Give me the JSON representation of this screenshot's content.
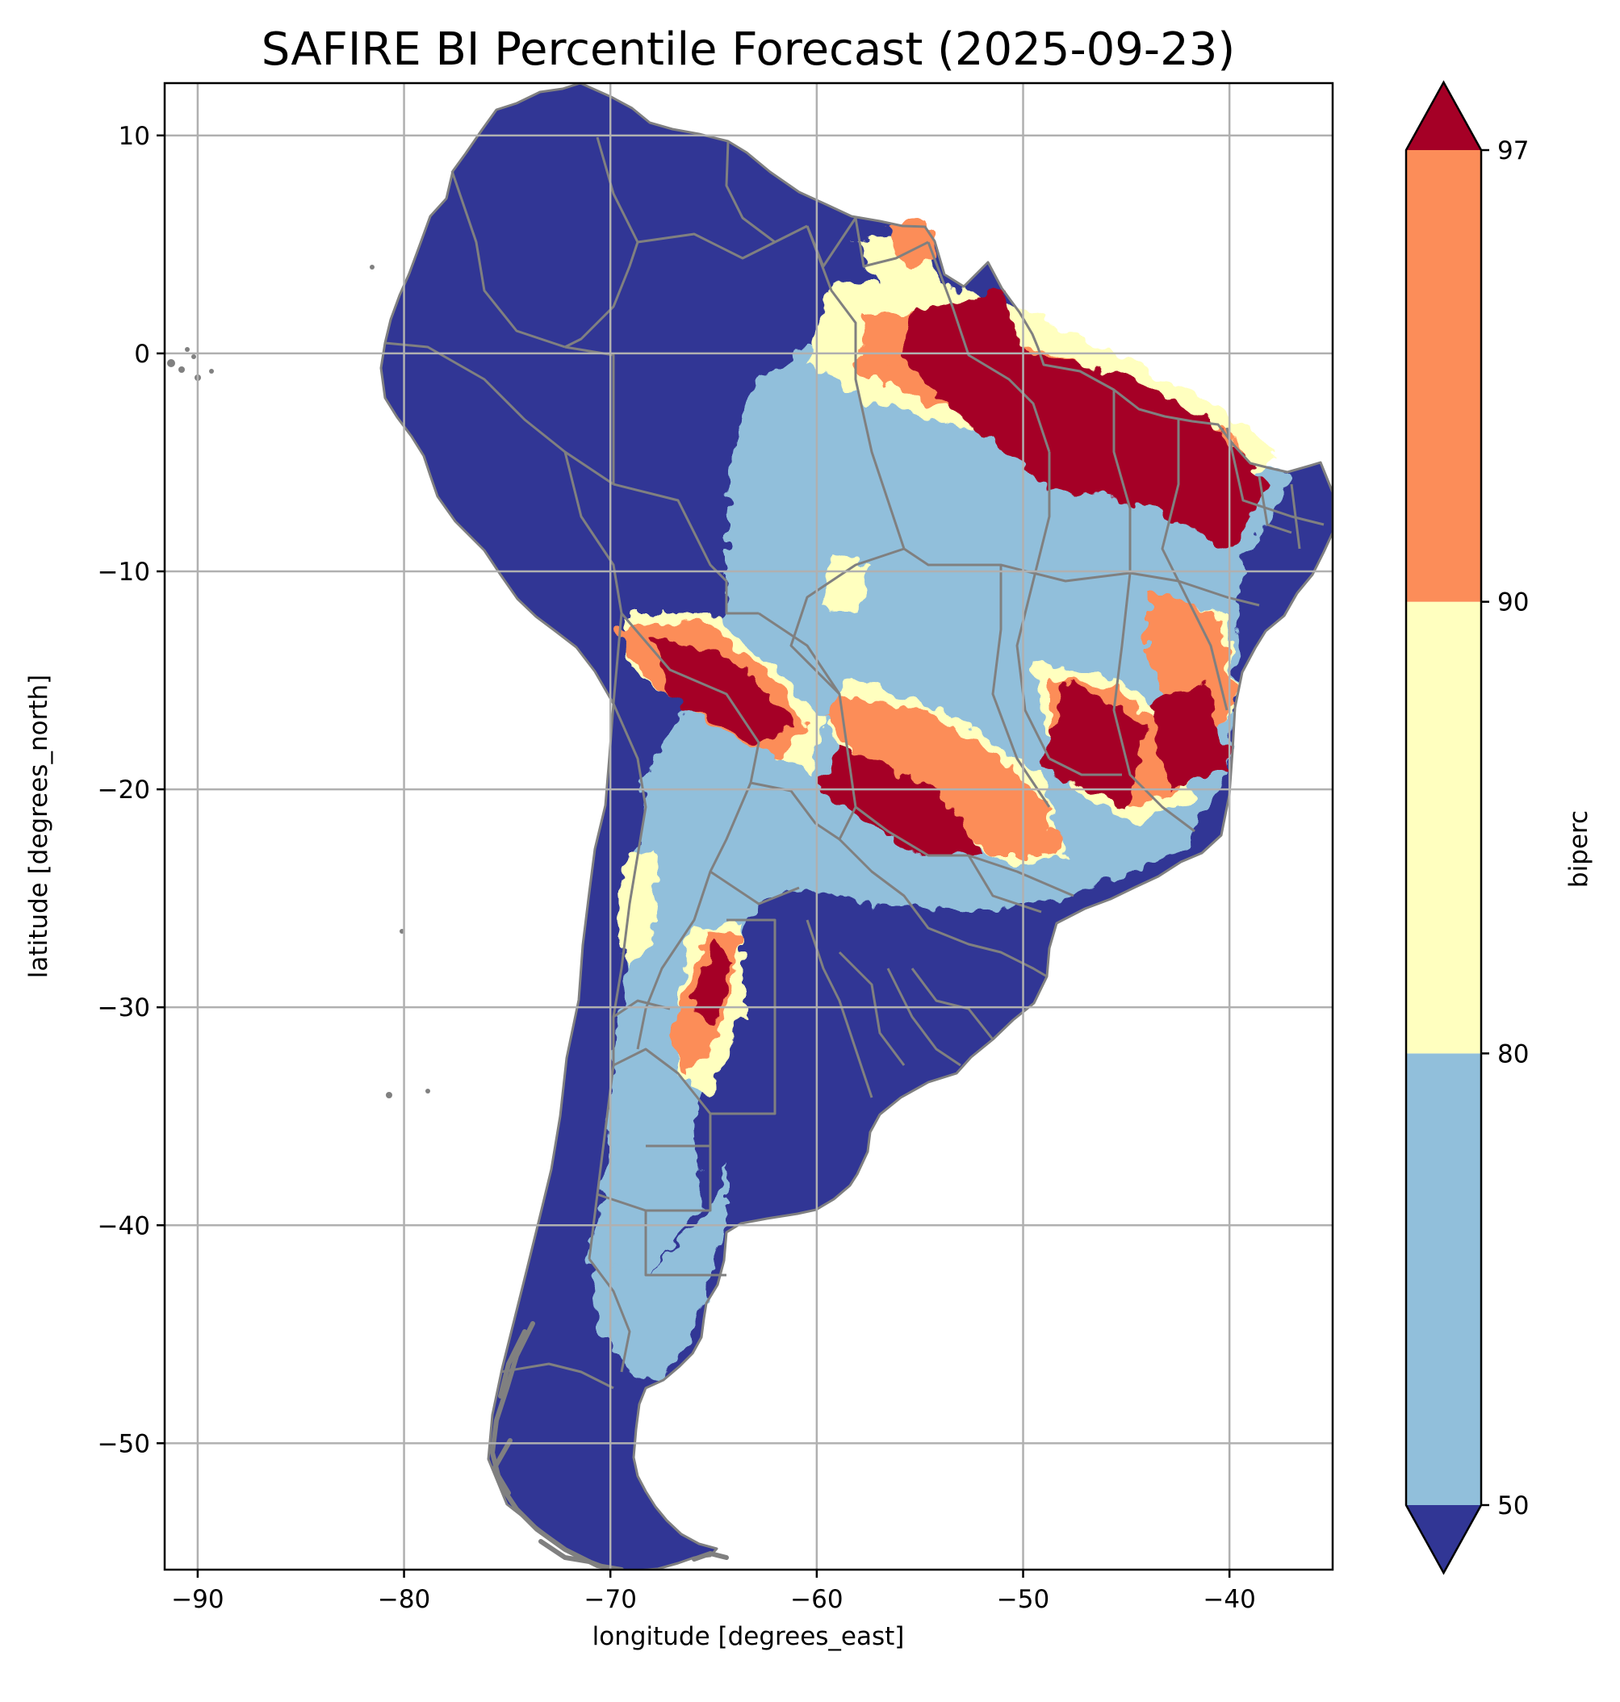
{
  "title": "SAFIRE BI Percentile Forecast (2025-09-23)",
  "map": {
    "type": "raster-map",
    "region": "South America",
    "xlabel": "longitude [degrees_east]",
    "ylabel": "latitude [degrees_north]",
    "xlim": [
      -91.6,
      -35.0
    ],
    "ylim": [
      -55.8,
      12.4
    ],
    "xticks": [
      -90,
      -80,
      -70,
      -60,
      -50,
      -40
    ],
    "yticks": [
      10,
      0,
      -10,
      -20,
      -30,
      -40,
      -50
    ],
    "xtick_labels": [
      "−90",
      "−80",
      "−70",
      "−60",
      "−50",
      "−40"
    ],
    "ytick_labels": [
      "10",
      "0",
      "−10",
      "−20",
      "−30",
      "−40",
      "−50"
    ],
    "grid": true,
    "border_color": "#808080",
    "regions": [
      {
        "class": "above-97",
        "lonlat": [
          [
            -55,
            2
          ],
          [
            -51,
            3
          ],
          [
            -50,
            0
          ],
          [
            -45,
            -1
          ],
          [
            -41,
            -3
          ],
          [
            -38,
            -6
          ],
          [
            -40,
            -9
          ],
          [
            -44,
            -7
          ],
          [
            -49,
            -6
          ],
          [
            -53,
            -3
          ],
          [
            -56,
            0
          ]
        ]
      },
      {
        "class": "above-97",
        "lonlat": [
          [
            -68,
            -13
          ],
          [
            -64,
            -14
          ],
          [
            -61,
            -17
          ],
          [
            -63,
            -18
          ],
          [
            -67,
            -16
          ]
        ]
      },
      {
        "class": "above-97",
        "lonlat": [
          [
            -59,
            -18
          ],
          [
            -54,
            -20
          ],
          [
            -52,
            -23
          ],
          [
            -55,
            -23
          ],
          [
            -60,
            -20
          ]
        ]
      },
      {
        "class": "above-97",
        "lonlat": [
          [
            -48,
            -15
          ],
          [
            -44,
            -17
          ],
          [
            -45,
            -21
          ],
          [
            -49,
            -19
          ]
        ]
      },
      {
        "class": "above-97",
        "lonlat": [
          [
            -44,
            -16
          ],
          [
            -41,
            -15
          ],
          [
            -40,
            -19
          ],
          [
            -43,
            -20
          ]
        ]
      },
      {
        "class": "above-97",
        "lonlat": [
          [
            -65,
            -27
          ],
          [
            -64,
            -28
          ],
          [
            -65,
            -31
          ],
          [
            -66,
            -30
          ]
        ]
      }
    ]
  },
  "colorbar": {
    "label": "biperc",
    "ticks": [
      50,
      80,
      90,
      97
    ],
    "tick_labels": [
      "50",
      "80",
      "90",
      "97"
    ],
    "classes": [
      {
        "name": "below-50",
        "color": "#313695"
      },
      {
        "name": "50-80",
        "color": "#91bfdb"
      },
      {
        "name": "80-90",
        "color": "#ffffbf"
      },
      {
        "name": "90-97",
        "color": "#fc8d59"
      },
      {
        "name": "above-97",
        "color": "#a50026"
      }
    ]
  }
}
